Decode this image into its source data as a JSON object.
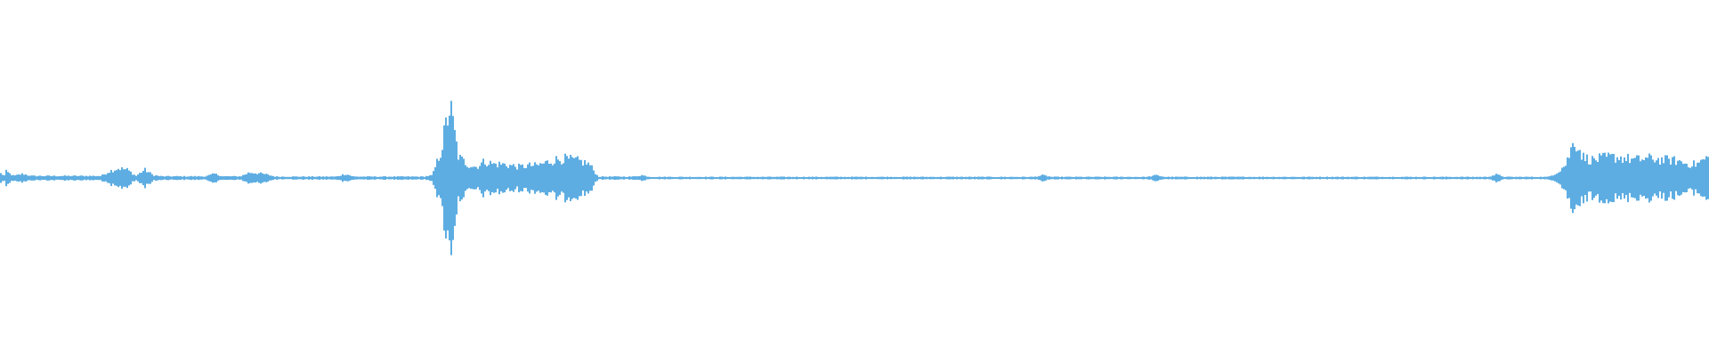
{
  "chart_data": {
    "type": "area",
    "title": "",
    "xlabel": "",
    "ylabel": "",
    "ylim": [
      -1,
      1
    ],
    "grid": false,
    "color": "#5dade2",
    "background": "#ffffff",
    "envelope_bins": [
      0.05,
      0.015,
      0.03,
      0.015,
      0.015,
      0.015,
      0.015,
      0.015,
      0.015,
      0.015,
      0.015,
      0.015,
      0.05,
      0.07,
      0.06,
      0.015,
      0.06,
      0.02,
      0.012,
      0.012,
      0.012,
      0.012,
      0.012,
      0.012,
      0.03,
      0.012,
      0.012,
      0.012,
      0.04,
      0.035,
      0.025,
      0.01,
      0.01,
      0.01,
      0.01,
      0.01,
      0.01,
      0.01,
      0.01,
      0.03,
      0.01,
      0.01,
      0.01,
      0.01,
      0.01,
      0.01,
      0.01,
      0.01,
      0.01,
      0.02,
      0.2,
      0.52,
      0.15,
      0.1,
      0.08,
      0.12,
      0.1,
      0.1,
      0.09,
      0.08,
      0.09,
      0.09,
      0.11,
      0.13,
      0.14,
      0.13,
      0.12,
      0.1,
      0.01,
      0.01,
      0.01,
      0.01,
      0.01,
      0.02,
      0.008,
      0.008,
      0.008,
      0.008,
      0.008,
      0.008,
      0.008,
      0.008,
      0.008,
      0.008,
      0.008,
      0.008,
      0.008,
      0.008,
      0.008,
      0.008,
      0.008,
      0.008,
      0.008,
      0.008,
      0.008,
      0.008,
      0.008,
      0.008,
      0.008,
      0.008,
      0.008,
      0.008,
      0.008,
      0.008,
      0.008,
      0.008,
      0.008,
      0.008,
      0.008,
      0.008,
      0.008,
      0.008,
      0.008,
      0.008,
      0.008,
      0.008,
      0.008,
      0.008,
      0.008,
      0.02,
      0.008,
      0.008,
      0.008,
      0.008,
      0.008,
      0.008,
      0.008,
      0.008,
      0.008,
      0.008,
      0.008,
      0.008,
      0.02,
      0.008,
      0.008,
      0.008,
      0.008,
      0.008,
      0.008,
      0.008,
      0.008,
      0.008,
      0.008,
      0.008,
      0.008,
      0.008,
      0.008,
      0.008,
      0.008,
      0.008,
      0.008,
      0.008,
      0.008,
      0.008,
      0.008,
      0.008,
      0.008,
      0.008,
      0.008,
      0.008,
      0.008,
      0.008,
      0.008,
      0.008,
      0.008,
      0.008,
      0.008,
      0.008,
      0.008,
      0.008,
      0.008,
      0.025,
      0.008,
      0.008,
      0.008,
      0.008,
      0.008,
      0.008,
      0.04,
      0.1,
      0.28,
      0.15,
      0.13,
      0.14,
      0.15,
      0.15,
      0.14,
      0.13,
      0.14,
      0.14,
      0.13,
      0.13,
      0.12,
      0.1,
      0.1,
      0.14
    ]
  }
}
